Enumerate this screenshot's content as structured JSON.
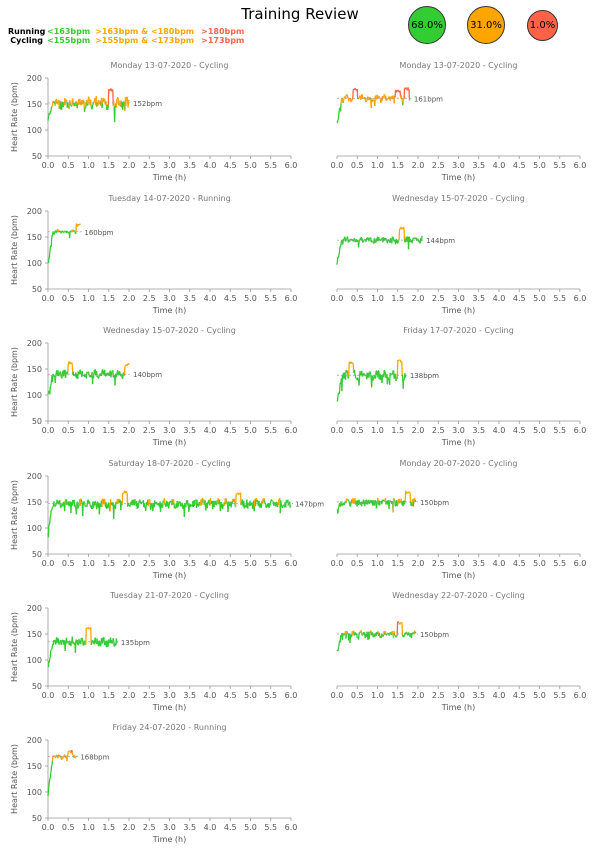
{
  "title": "Training Review",
  "legend": {
    "running": {
      "label": "Running",
      "z1": "<163bpm",
      "z2": ">163bpm & <180bpm",
      "z3": ">180bpm"
    },
    "cycling": {
      "label": "Cycling",
      "z1": "<155bpm",
      "z2": ">155bpm & <173bpm",
      "z3": ">173bpm"
    }
  },
  "zone_summary": [
    {
      "value": "68.0%",
      "color": "#33cc33"
    },
    {
      "value": "31.0%",
      "color": "#ffa500"
    },
    {
      "value": "1.0%",
      "color": "#ff6347"
    }
  ],
  "colors": {
    "zone1": "#33cc33",
    "zone2": "#ffa500",
    "zone3": "#ff6347",
    "axis": "#999999",
    "text": "#555555"
  },
  "axes": {
    "xlabel": "Time (h)",
    "ylabel": "Heart Rate (bpm)",
    "xlim": [
      0,
      6
    ],
    "ylim": [
      50,
      200
    ],
    "xticks": [
      "0.0",
      "0.5",
      "1.0",
      "1.5",
      "2.0",
      "2.5",
      "3.0",
      "3.5",
      "4.0",
      "4.5",
      "5.0",
      "5.5",
      "6.0"
    ],
    "yticks": [
      "50",
      "100",
      "150",
      "200"
    ]
  },
  "chart_data": [
    {
      "type": "line",
      "title": "Monday 13-07-2020 - Cycling",
      "sport": "Cycling",
      "duration_h": 2.0,
      "avg_label": "152bpm",
      "avg": 152,
      "z1": 155,
      "z2": 173,
      "spread": 14,
      "start": 120,
      "seed": 11,
      "peaks": [
        [
          1.55,
          180
        ]
      ]
    },
    {
      "type": "line",
      "title": "Monday 13-07-2020 - Cycling",
      "sport": "Cycling",
      "duration_h": 1.8,
      "avg_label": "161bpm",
      "avg": 161,
      "z1": 155,
      "z2": 173,
      "spread": 9,
      "start": 110,
      "seed": 23,
      "peaks": [
        [
          0.45,
          181
        ],
        [
          1.5,
          178
        ],
        [
          1.72,
          182
        ]
      ]
    },
    {
      "type": "line",
      "title": "Tuesday 14-07-2020 - Running",
      "sport": "Running",
      "duration_h": 0.8,
      "avg_label": "160bpm",
      "avg": 160,
      "z1": 163,
      "z2": 180,
      "spread": 5,
      "start": 95,
      "seed": 37,
      "peaks": [
        [
          0.75,
          176
        ]
      ]
    },
    {
      "type": "line",
      "title": "Wednesday 15-07-2020 - Cycling",
      "sport": "Cycling",
      "duration_h": 2.1,
      "avg_label": "144bpm",
      "avg": 144,
      "z1": 155,
      "z2": 173,
      "spread": 9,
      "start": 100,
      "seed": 41,
      "peaks": [
        [
          1.6,
          170
        ]
      ]
    },
    {
      "type": "line",
      "title": "Wednesday 15-07-2020 - Cycling",
      "sport": "Cycling",
      "duration_h": 2.0,
      "avg_label": "140bpm",
      "avg": 140,
      "z1": 155,
      "z2": 173,
      "spread": 10,
      "start": 100,
      "seed": 53,
      "peaks": [
        [
          0.55,
          165
        ],
        [
          1.95,
          162
        ]
      ]
    },
    {
      "type": "line",
      "title": "Friday 17-07-2020 - Cycling",
      "sport": "Cycling",
      "duration_h": 1.7,
      "avg_label": "138bpm",
      "avg": 138,
      "z1": 155,
      "z2": 173,
      "spread": 11,
      "start": 85,
      "seed": 67,
      "peaks": [
        [
          0.35,
          165
        ],
        [
          1.55,
          168
        ]
      ]
    },
    {
      "type": "line",
      "title": "Saturday 18-07-2020 - Cycling",
      "sport": "Cycling",
      "duration_h": 6.0,
      "avg_label": "147bpm",
      "avg": 147,
      "z1": 155,
      "z2": 173,
      "spread": 11,
      "start": 95,
      "seed": 71,
      "peaks": [
        [
          1.9,
          172
        ],
        [
          4.7,
          170
        ]
      ]
    },
    {
      "type": "line",
      "title": "Monday 20-07-2020 - Cycling",
      "sport": "Cycling",
      "duration_h": 1.95,
      "avg_label": "150bpm",
      "avg": 150,
      "z1": 155,
      "z2": 173,
      "spread": 9,
      "start": 135,
      "seed": 83,
      "peaks": [
        [
          1.75,
          172
        ]
      ]
    },
    {
      "type": "line",
      "title": "Tuesday 21-07-2020 - Cycling",
      "sport": "Cycling",
      "duration_h": 1.7,
      "avg_label": "135bpm",
      "avg": 135,
      "z1": 155,
      "z2": 173,
      "spread": 11,
      "start": 85,
      "seed": 97,
      "peaks": [
        [
          1.0,
          163
        ]
      ]
    },
    {
      "type": "line",
      "title": "Wednesday 22-07-2020 - Cycling",
      "sport": "Cycling",
      "duration_h": 1.95,
      "avg_label": "150bpm",
      "avg": 150,
      "z1": 155,
      "z2": 173,
      "spread": 8,
      "start": 115,
      "seed": 101,
      "peaks": [
        [
          1.55,
          174
        ]
      ]
    },
    {
      "type": "line",
      "title": "Friday 24-07-2020 - Running",
      "sport": "Running",
      "duration_h": 0.7,
      "avg_label": "168bpm",
      "avg": 168,
      "z1": 163,
      "z2": 180,
      "spread": 5,
      "start": 100,
      "seed": 113,
      "peaks": [
        [
          0.55,
          181
        ]
      ]
    }
  ]
}
